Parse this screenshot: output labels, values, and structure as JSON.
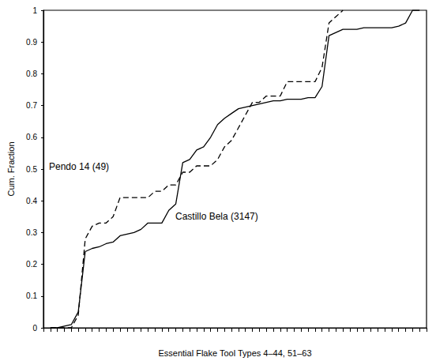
{
  "chart_data": {
    "type": "line",
    "x_label": "Essential Flake Tool Types 4–44, 51–63",
    "y_label": "Cum. Fraction",
    "x": [
      1,
      2,
      3,
      4,
      5,
      6,
      7,
      8,
      9,
      10,
      11,
      12,
      13,
      14,
      15,
      16,
      17,
      18,
      19,
      20,
      21,
      22,
      23,
      24,
      25,
      26,
      27,
      28,
      29,
      30,
      31,
      32,
      33,
      34,
      35,
      36,
      37,
      38,
      39,
      40,
      41,
      42,
      43,
      44,
      45,
      46,
      47,
      48,
      49,
      50,
      51,
      52,
      53,
      54
    ],
    "series": [
      {
        "name": "Pendo 14 (49)",
        "color": "#000000",
        "line_style": "dashed",
        "values": [
          0,
          0,
          0,
          0,
          0.04,
          0.28,
          0.32,
          0.33,
          0.33,
          0.35,
          0.41,
          0.41,
          0.41,
          0.41,
          0.41,
          0.43,
          0.43,
          0.45,
          0.45,
          0.49,
          0.49,
          0.51,
          0.51,
          0.51,
          0.53,
          0.57,
          0.59,
          0.63,
          0.67,
          0.71,
          0.71,
          0.73,
          0.73,
          0.73,
          0.775,
          0.775,
          0.775,
          0.775,
          0.775,
          0.82,
          0.96,
          0.98,
          1.0,
          null,
          null,
          null,
          null,
          null,
          null,
          null,
          null,
          null,
          null,
          null
        ]
      },
      {
        "name": "Castillo Bela (3147)",
        "color": "#000000",
        "line_style": "solid",
        "values": [
          0,
          0,
          0.005,
          0.01,
          0.05,
          0.24,
          0.25,
          0.255,
          0.265,
          0.27,
          0.29,
          0.295,
          0.3,
          0.31,
          0.33,
          0.33,
          0.33,
          0.37,
          0.39,
          0.52,
          0.53,
          0.56,
          0.57,
          0.6,
          0.64,
          0.66,
          0.675,
          0.69,
          0.695,
          0.7,
          0.705,
          0.71,
          0.715,
          0.715,
          0.72,
          0.72,
          0.72,
          0.725,
          0.725,
          0.76,
          0.92,
          0.93,
          0.94,
          0.94,
          0.94,
          0.945,
          0.945,
          0.945,
          0.945,
          0.945,
          0.95,
          0.96,
          1.0,
          1.0
        ]
      }
    ],
    "xlim": [
      0,
      55
    ],
    "xticks": [
      0,
      1,
      2,
      3,
      4,
      5,
      6,
      7,
      8,
      9,
      10,
      11,
      12,
      13,
      14,
      15,
      16,
      17,
      18,
      19,
      20,
      21,
      22,
      23,
      24,
      25,
      26,
      27,
      28,
      29,
      30,
      31,
      32,
      33,
      34,
      35,
      36,
      37,
      38,
      39,
      40,
      41,
      42,
      43,
      44,
      45,
      46,
      47,
      48,
      49,
      50,
      51,
      52,
      53,
      54,
      55
    ],
    "ylim": [
      0,
      1
    ],
    "yticks": [
      0,
      0.1,
      0.2,
      0.3,
      0.4,
      0.5,
      0.6,
      0.7,
      0.8,
      0.9,
      1
    ],
    "tick_labels": "y",
    "grid": false
  }
}
